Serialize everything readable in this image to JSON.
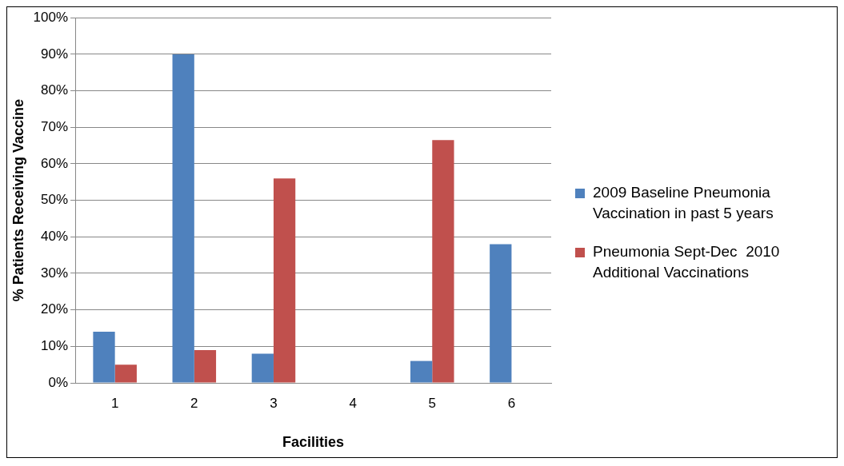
{
  "chart_data": {
    "type": "bar",
    "xlabel": "Facilities",
    "ylabel": "% Patients Receiving Vaccine",
    "categories": [
      "1",
      "2",
      "3",
      "4",
      "5",
      "6"
    ],
    "series": [
      {
        "name": "2009 Baseline Pneumonia Vaccination in past 5 years",
        "color": "#4f81bd",
        "values": [
          14,
          90,
          8,
          0,
          6,
          38
        ]
      },
      {
        "name": "Pneumonia Sept-Dec  2010 Additional Vaccinations",
        "color": "#c0504d",
        "values": [
          5,
          9,
          56,
          0,
          66.5,
          0
        ]
      }
    ],
    "ylim": [
      0,
      100
    ],
    "yticks": [
      {
        "value": 0,
        "label": "0%"
      },
      {
        "value": 10,
        "label": "10%"
      },
      {
        "value": 20,
        "label": "20%"
      },
      {
        "value": 30,
        "label": "30%"
      },
      {
        "value": 40,
        "label": "40%"
      },
      {
        "value": 50,
        "label": "50%"
      },
      {
        "value": 60,
        "label": "60%"
      },
      {
        "value": 70,
        "label": "70%"
      },
      {
        "value": 80,
        "label": "80%"
      },
      {
        "value": 90,
        "label": "90%"
      },
      {
        "value": 100,
        "label": "100%"
      }
    ],
    "grid": "y",
    "legend": "right"
  }
}
